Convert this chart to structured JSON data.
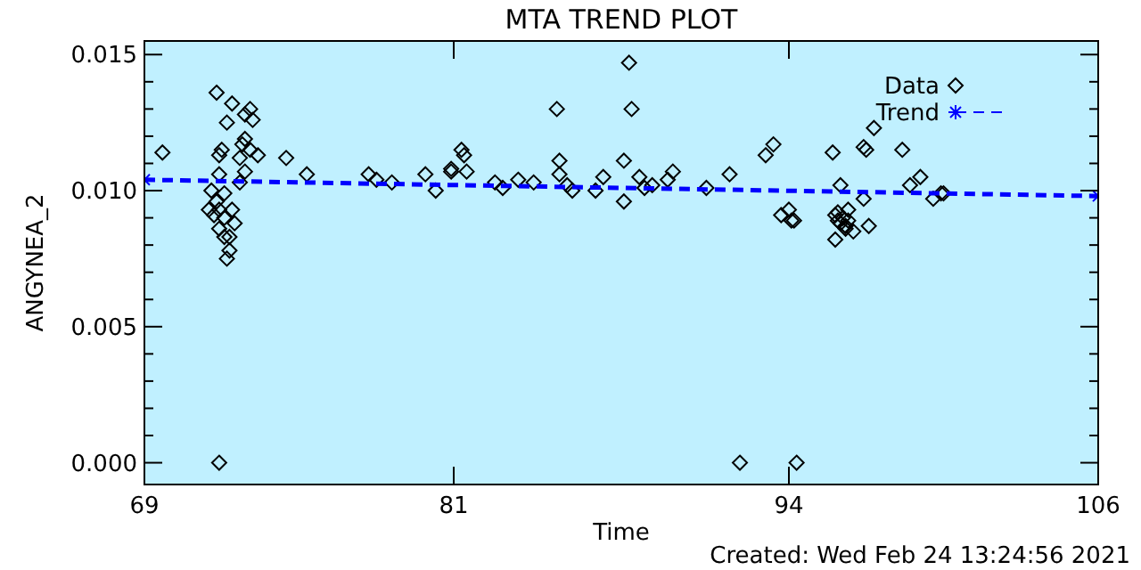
{
  "chart_data": {
    "type": "scatter",
    "title": "MTA TREND PLOT",
    "xlabel": "Time",
    "ylabel": "ANGYNEA_2",
    "annotations": [
      "Created: Wed Feb 24 13:24:56 2021"
    ],
    "xlim": [
      69,
      106
    ],
    "xticks": [
      69,
      81,
      94,
      106
    ],
    "ylim": [
      -0.0008,
      0.0155
    ],
    "yticks": [
      {
        "value": 0,
        "label": "0.000"
      },
      {
        "value": 0.001,
        "label": null
      },
      {
        "value": 0.002,
        "label": null
      },
      {
        "value": 0.003,
        "label": null
      },
      {
        "value": 0.004,
        "label": null
      },
      {
        "value": 0.005,
        "label": "0.005"
      },
      {
        "value": 0.006,
        "label": null
      },
      {
        "value": 0.007,
        "label": null
      },
      {
        "value": 0.008,
        "label": null
      },
      {
        "value": 0.009,
        "label": null
      },
      {
        "value": 0.01,
        "label": "0.010"
      },
      {
        "value": 0.011,
        "label": null
      },
      {
        "value": 0.012,
        "label": null
      },
      {
        "value": 0.013,
        "label": null
      },
      {
        "value": 0.014,
        "label": null
      },
      {
        "value": 0.015,
        "label": "0.015"
      }
    ],
    "grid": false,
    "legend": "top right",
    "series": [
      {
        "name": "Data",
        "marker": "diamond",
        "color": "#000000",
        "x": [
          69.7,
          71.8,
          71.9,
          72.0,
          72.2,
          72.4,
          73.1,
          72.9,
          73.2,
          72.9,
          72.8,
          73.1,
          72.7,
          73.4,
          71.9,
          71.6,
          72.7,
          72.9,
          71.5,
          71.7,
          71.9,
          72.1,
          72.4,
          72.5,
          72.1,
          72.3,
          71.9,
          72.3,
          72.2,
          71.8,
          72.1,
          71.9,
          74.5,
          75.3,
          77.7,
          78.0,
          78.6,
          79.9,
          80.3,
          80.9,
          81.4,
          81.3,
          80.9,
          81.5,
          82.6,
          82.9,
          83.5,
          84.1,
          85.0,
          85.1,
          85.1,
          85.4,
          85.6,
          86.5,
          86.8,
          87.6,
          87.6,
          87.8,
          87.9,
          88.2,
          88.4,
          88.7,
          89.3,
          89.5,
          90.8,
          91.7,
          92.1,
          93.1,
          93.4,
          93.7,
          94.0,
          94.2,
          94.3,
          94.1,
          95.9,
          96.0,
          96.1,
          96.2,
          95.8,
          96.3,
          95.9,
          96.2,
          95.8,
          96.0,
          96.5,
          95.7,
          96.9,
          97.0,
          97.3,
          97.1,
          96.9,
          96.3,
          98.4,
          98.7,
          99.1,
          99.6,
          99.9,
          100.0
        ],
        "values": [
          0.0114,
          0.0136,
          0.0113,
          0.0115,
          0.0125,
          0.0132,
          0.013,
          0.0128,
          0.0126,
          0.0119,
          0.0117,
          0.0115,
          0.0112,
          0.0113,
          0.0106,
          0.01,
          0.0103,
          0.0107,
          0.0093,
          0.0091,
          0.0093,
          0.009,
          0.0093,
          0.0088,
          0.0083,
          0.0083,
          0.0086,
          0.0078,
          0.0075,
          0.0096,
          0.0099,
          0,
          0.0112,
          0.0106,
          0.0106,
          0.0104,
          0.0103,
          0.0106,
          0.01,
          0.0108,
          0.0113,
          0.0115,
          0.0107,
          0.0107,
          0.0103,
          0.0101,
          0.0104,
          0.0103,
          0.013,
          0.0111,
          0.0106,
          0.0102,
          0.01,
          0.01,
          0.0105,
          0.0111,
          0.0096,
          0.0147,
          0.013,
          0.0105,
          0.0101,
          0.0102,
          0.0104,
          0.0107,
          0.0101,
          0.0106,
          0,
          0.0113,
          0.0117,
          0.0091,
          0.0093,
          0.0089,
          0,
          0.0089,
          0.0089,
          0.0088,
          0.009,
          0.0087,
          0.0091,
          0.0089,
          0.0092,
          0.0086,
          0.0082,
          0.0102,
          0.0085,
          0.0114,
          0.0116,
          0.0115,
          0.0123,
          0.0087,
          0.0097,
          0.0093,
          0.0115,
          0.0102,
          0.0105,
          0.0097,
          0.0099,
          0.0099
        ]
      },
      {
        "name": "Trend",
        "type": "line",
        "marker": "cross",
        "line_style": "dashed",
        "color": "#0000ff",
        "x": [
          69,
          106
        ],
        "values": [
          0.0104,
          0.0098
        ]
      }
    ]
  }
}
